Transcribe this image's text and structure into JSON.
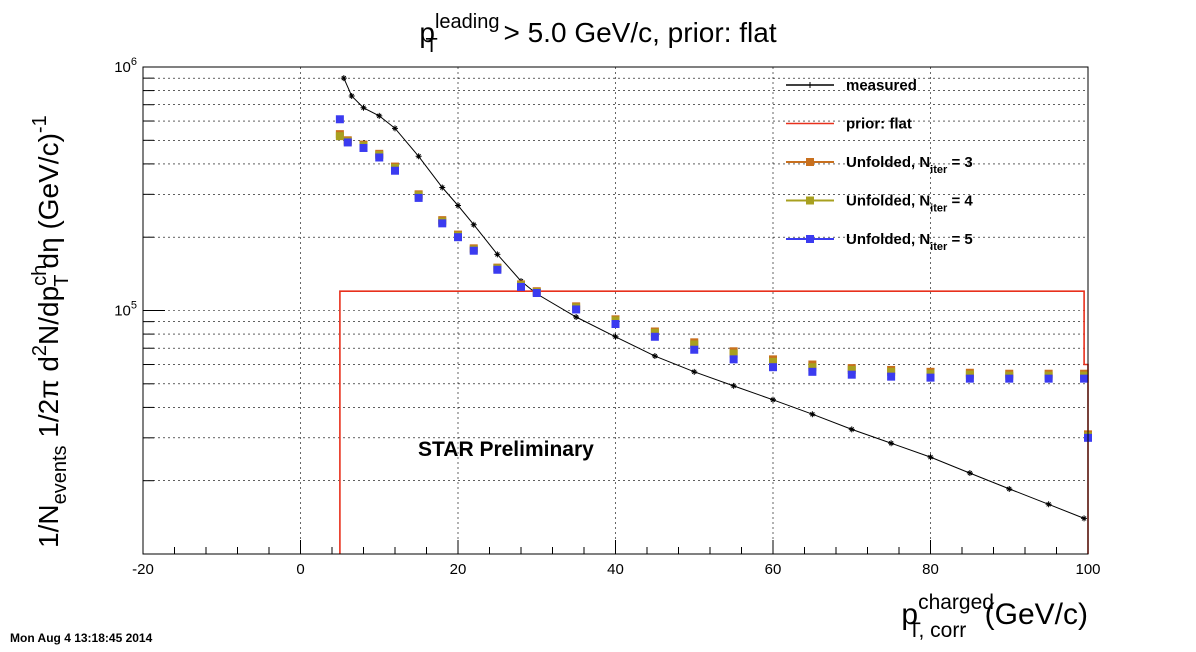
{
  "chart_data": {
    "type": "line",
    "title": {
      "base": "p",
      "sup": "leading",
      "sub": "T",
      "rest": " > 5.0 GeV/c, prior: flat"
    },
    "xlabel": {
      "base": "p",
      "sup": "charged",
      "sub": "T, corr",
      "rest": " (GeV/c)"
    },
    "ylabel": {
      "p1": "1/N",
      "p1sub": "events",
      "p2": " 1/2π d",
      "p2sup": "2",
      "p3": "N/dp",
      "p3sup": "ch",
      "p3sub": "T",
      "p4": "dη (GeV/c)",
      "p4sup": "-1"
    },
    "xlim": [
      -20,
      100
    ],
    "ylim": [
      10000,
      1000000
    ],
    "y_scale": "log",
    "x_ticks": [
      "-20",
      "0",
      "20",
      "40",
      "60",
      "80",
      "100"
    ],
    "y_ticks": [
      {
        "base": "10",
        "exp": "5"
      },
      {
        "base": "10",
        "exp": "6"
      }
    ],
    "grid": true,
    "legend_position": "top-right",
    "annotation": "STAR Preliminary",
    "timestamp": "Mon Aug  4 13:18:45 2014",
    "series": [
      {
        "name": "measured",
        "style": "line-star",
        "color": "#000000",
        "x": [
          5.5,
          6.5,
          8,
          10,
          12,
          15,
          18,
          20,
          22,
          25,
          28,
          30,
          35,
          40,
          45,
          50,
          55,
          60,
          65,
          70,
          75,
          80,
          85,
          90,
          95,
          99.5
        ],
        "y": [
          900000,
          760000,
          680000,
          630000,
          560000,
          430000,
          320000,
          270000,
          225000,
          170000,
          132000,
          117000,
          94000,
          78000,
          65000,
          56000,
          49000,
          43000,
          37500,
          32500,
          28500,
          25000,
          21500,
          18500,
          16000,
          14000
        ]
      },
      {
        "name": "prior: flat",
        "style": "step",
        "color": "#e8301c",
        "x": [
          5,
          5,
          99.5,
          99.5,
          100,
          100
        ],
        "y": [
          10000,
          120000,
          120000,
          60000,
          60000,
          10000
        ]
      },
      {
        "name": "Unfolded, N_iter = 3",
        "style": "markers",
        "color": "#c8701e",
        "x": [
          5,
          6,
          8,
          10,
          12,
          15,
          18,
          20,
          22,
          25,
          28,
          30,
          35,
          40,
          45,
          50,
          55,
          60,
          65,
          70,
          75,
          80,
          85,
          90,
          95,
          99.5,
          100
        ],
        "y": [
          530000,
          500000,
          480000,
          440000,
          390000,
          300000,
          235000,
          205000,
          180000,
          150000,
          128000,
          120000,
          104000,
          92000,
          82000,
          74000,
          68000,
          63000,
          60000,
          58000,
          57000,
          56000,
          55500,
          55000,
          55000,
          55000,
          31000
        ]
      },
      {
        "name": "Unfolded, N_iter = 4",
        "style": "markers",
        "color": "#a8a020",
        "x": [
          5,
          6,
          8,
          10,
          12,
          15,
          18,
          20,
          22,
          25,
          28,
          30,
          35,
          40,
          45,
          50,
          55,
          60,
          65,
          70,
          75,
          80,
          85,
          90,
          95,
          99.5,
          100
        ],
        "y": [
          520000,
          495000,
          475000,
          435000,
          385000,
          297000,
          232000,
          203000,
          178000,
          149000,
          127000,
          119000,
          103000,
          91000,
          81000,
          72500,
          66500,
          61500,
          58500,
          57000,
          56000,
          55000,
          54500,
          54000,
          54000,
          54000,
          30500
        ]
      },
      {
        "name": "Unfolded, N_iter = 5",
        "style": "markers",
        "color": "#3b3bf0",
        "x": [
          5,
          6,
          8,
          10,
          12,
          15,
          18,
          20,
          22,
          25,
          28,
          30,
          35,
          40,
          45,
          50,
          55,
          60,
          65,
          70,
          75,
          80,
          85,
          90,
          95,
          99.5,
          100
        ],
        "y": [
          610000,
          490000,
          465000,
          425000,
          375000,
          290000,
          228000,
          200000,
          176000,
          147000,
          125000,
          118000,
          101000,
          88000,
          78000,
          69000,
          63000,
          58500,
          56000,
          54500,
          53500,
          53000,
          52500,
          52500,
          52500,
          52500,
          30000
        ]
      }
    ]
  }
}
